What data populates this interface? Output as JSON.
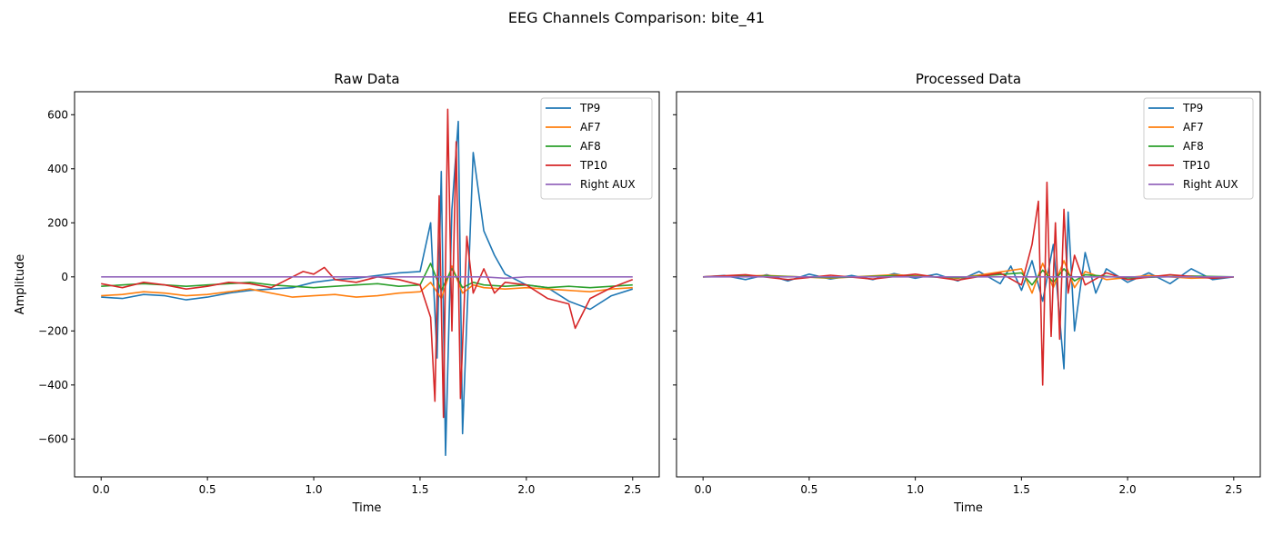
{
  "figure": {
    "suptitle": "EEG Channels Comparison: bite_41"
  },
  "legend": {
    "location": "upper right",
    "entries": [
      {
        "name": "TP9",
        "color": "#1f77b4"
      },
      {
        "name": "AF7",
        "color": "#ff7f0e"
      },
      {
        "name": "AF8",
        "color": "#2ca02c"
      },
      {
        "name": "TP10",
        "color": "#d62728"
      },
      {
        "name": "Right AUX",
        "color": "#9467bd"
      }
    ]
  },
  "chart_data": [
    {
      "type": "line",
      "title": "Raw Data",
      "xlabel": "Time",
      "ylabel": "Amplitude",
      "xlim": [
        -0.125,
        2.625
      ],
      "ylim": [
        -740,
        685
      ],
      "xticks": [
        "0.0",
        "0.5",
        "1.0",
        "1.5",
        "2.0",
        "2.5"
      ],
      "yticks": [
        "600",
        "400",
        "200",
        "0",
        "−200",
        "−400",
        "−600"
      ],
      "grid": false,
      "series": [
        {
          "name": "TP9",
          "color": "#1f77b4",
          "x": [
            0,
            0.1,
            0.2,
            0.3,
            0.4,
            0.5,
            0.6,
            0.7,
            0.8,
            0.9,
            1.0,
            1.1,
            1.2,
            1.3,
            1.4,
            1.5,
            1.55,
            1.58,
            1.6,
            1.62,
            1.65,
            1.68,
            1.7,
            1.75,
            1.8,
            1.85,
            1.9,
            2.0,
            2.1,
            2.2,
            2.3,
            2.4,
            2.5
          ],
          "y": [
            -75,
            -80,
            -65,
            -70,
            -85,
            -75,
            -60,
            -50,
            -45,
            -40,
            -20,
            -10,
            -5,
            5,
            15,
            20,
            200,
            -300,
            390,
            -660,
            250,
            575,
            -580,
            460,
            170,
            80,
            10,
            -30,
            -40,
            -90,
            -120,
            -70,
            -45
          ]
        },
        {
          "name": "AF7",
          "color": "#ff7f0e",
          "x": [
            0,
            0.1,
            0.2,
            0.3,
            0.4,
            0.5,
            0.6,
            0.7,
            0.8,
            0.9,
            1.0,
            1.1,
            1.2,
            1.3,
            1.4,
            1.5,
            1.55,
            1.6,
            1.65,
            1.7,
            1.75,
            1.8,
            1.9,
            2.0,
            2.1,
            2.2,
            2.3,
            2.4,
            2.5
          ],
          "y": [
            -70,
            -65,
            -55,
            -60,
            -70,
            -65,
            -55,
            -45,
            -60,
            -75,
            -70,
            -65,
            -75,
            -70,
            -60,
            -55,
            -20,
            -80,
            40,
            -60,
            -30,
            -40,
            -45,
            -40,
            -45,
            -50,
            -55,
            -45,
            -40
          ]
        },
        {
          "name": "AF8",
          "color": "#2ca02c",
          "x": [
            0,
            0.1,
            0.2,
            0.3,
            0.4,
            0.5,
            0.6,
            0.7,
            0.8,
            0.9,
            1.0,
            1.1,
            1.2,
            1.3,
            1.4,
            1.5,
            1.55,
            1.6,
            1.65,
            1.7,
            1.75,
            1.8,
            1.9,
            2.0,
            2.1,
            2.2,
            2.3,
            2.4,
            2.5
          ],
          "y": [
            -35,
            -30,
            -25,
            -30,
            -35,
            -30,
            -25,
            -20,
            -30,
            -35,
            -40,
            -35,
            -30,
            -25,
            -35,
            -30,
            50,
            -50,
            30,
            -40,
            -20,
            -30,
            -35,
            -30,
            -40,
            -35,
            -40,
            -35,
            -30
          ]
        },
        {
          "name": "TP10",
          "color": "#d62728",
          "x": [
            0,
            0.1,
            0.2,
            0.3,
            0.4,
            0.5,
            0.6,
            0.7,
            0.8,
            0.9,
            0.95,
            1.0,
            1.05,
            1.1,
            1.2,
            1.3,
            1.4,
            1.5,
            1.55,
            1.57,
            1.59,
            1.61,
            1.63,
            1.65,
            1.67,
            1.69,
            1.72,
            1.75,
            1.8,
            1.85,
            1.9,
            2.0,
            2.1,
            2.2,
            2.23,
            2.3,
            2.4,
            2.5
          ],
          "y": [
            -25,
            -40,
            -20,
            -30,
            -45,
            -35,
            -20,
            -25,
            -40,
            0,
            20,
            10,
            35,
            -10,
            -20,
            0,
            -10,
            -30,
            -150,
            -460,
            300,
            -520,
            620,
            -200,
            500,
            -450,
            150,
            -60,
            30,
            -60,
            -20,
            -30,
            -80,
            -100,
            -190,
            -80,
            -40,
            -10
          ]
        },
        {
          "name": "Right AUX",
          "color": "#9467bd",
          "x": [
            0,
            0.5,
            1.0,
            1.5,
            1.6,
            1.8,
            1.9,
            2.0,
            2.5
          ],
          "y": [
            0,
            0,
            0,
            0,
            0,
            0,
            -5,
            0,
            0
          ]
        }
      ]
    },
    {
      "type": "line",
      "title": "Processed Data",
      "xlabel": "Time",
      "ylabel": "",
      "xlim": [
        -0.125,
        2.625
      ],
      "ylim": [
        -740,
        685
      ],
      "xticks": [
        "0.0",
        "0.5",
        "1.0",
        "1.5",
        "2.0",
        "2.5"
      ],
      "yticks": [],
      "grid": false,
      "series": [
        {
          "name": "TP9",
          "color": "#1f77b4",
          "x": [
            0,
            0.1,
            0.2,
            0.3,
            0.4,
            0.5,
            0.6,
            0.7,
            0.8,
            0.9,
            1.0,
            1.1,
            1.2,
            1.3,
            1.4,
            1.45,
            1.5,
            1.55,
            1.6,
            1.65,
            1.7,
            1.72,
            1.75,
            1.8,
            1.85,
            1.9,
            2.0,
            2.1,
            2.2,
            2.3,
            2.4,
            2.5
          ],
          "y": [
            0,
            5,
            -10,
            8,
            -15,
            10,
            -8,
            5,
            -10,
            12,
            -5,
            10,
            -15,
            20,
            -25,
            40,
            -50,
            60,
            -90,
            120,
            -340,
            240,
            -200,
            90,
            -60,
            30,
            -20,
            15,
            -25,
            30,
            -10,
            0
          ]
        },
        {
          "name": "AF7",
          "color": "#ff7f0e",
          "x": [
            0,
            0.3,
            0.6,
            0.9,
            1.2,
            1.5,
            1.55,
            1.6,
            1.65,
            1.7,
            1.75,
            1.8,
            1.9,
            2.1,
            2.3,
            2.5
          ],
          "y": [
            0,
            5,
            -5,
            8,
            -5,
            30,
            -60,
            50,
            -40,
            60,
            -40,
            20,
            -10,
            5,
            -5,
            0
          ]
        },
        {
          "name": "AF8",
          "color": "#2ca02c",
          "x": [
            0,
            0.3,
            0.6,
            0.9,
            1.2,
            1.5,
            1.55,
            1.6,
            1.65,
            1.7,
            1.75,
            1.8,
            2.0,
            2.3,
            2.5
          ],
          "y": [
            0,
            3,
            -3,
            4,
            -3,
            15,
            -30,
            25,
            -20,
            30,
            -15,
            8,
            -4,
            3,
            0
          ]
        },
        {
          "name": "TP10",
          "color": "#d62728",
          "x": [
            0,
            0.2,
            0.4,
            0.6,
            0.8,
            1.0,
            1.2,
            1.4,
            1.5,
            1.55,
            1.58,
            1.6,
            1.62,
            1.64,
            1.66,
            1.68,
            1.7,
            1.72,
            1.75,
            1.8,
            1.9,
            2.0,
            2.2,
            2.4,
            2.5
          ],
          "y": [
            0,
            8,
            -10,
            6,
            -8,
            10,
            -12,
            15,
            -30,
            120,
            280,
            -400,
            350,
            -220,
            200,
            -230,
            250,
            -60,
            80,
            -30,
            15,
            -10,
            8,
            -5,
            0
          ]
        },
        {
          "name": "Right AUX",
          "color": "#9467bd",
          "x": [
            0,
            1.0,
            2.0,
            2.5
          ],
          "y": [
            0,
            0,
            0,
            0
          ]
        }
      ]
    }
  ]
}
